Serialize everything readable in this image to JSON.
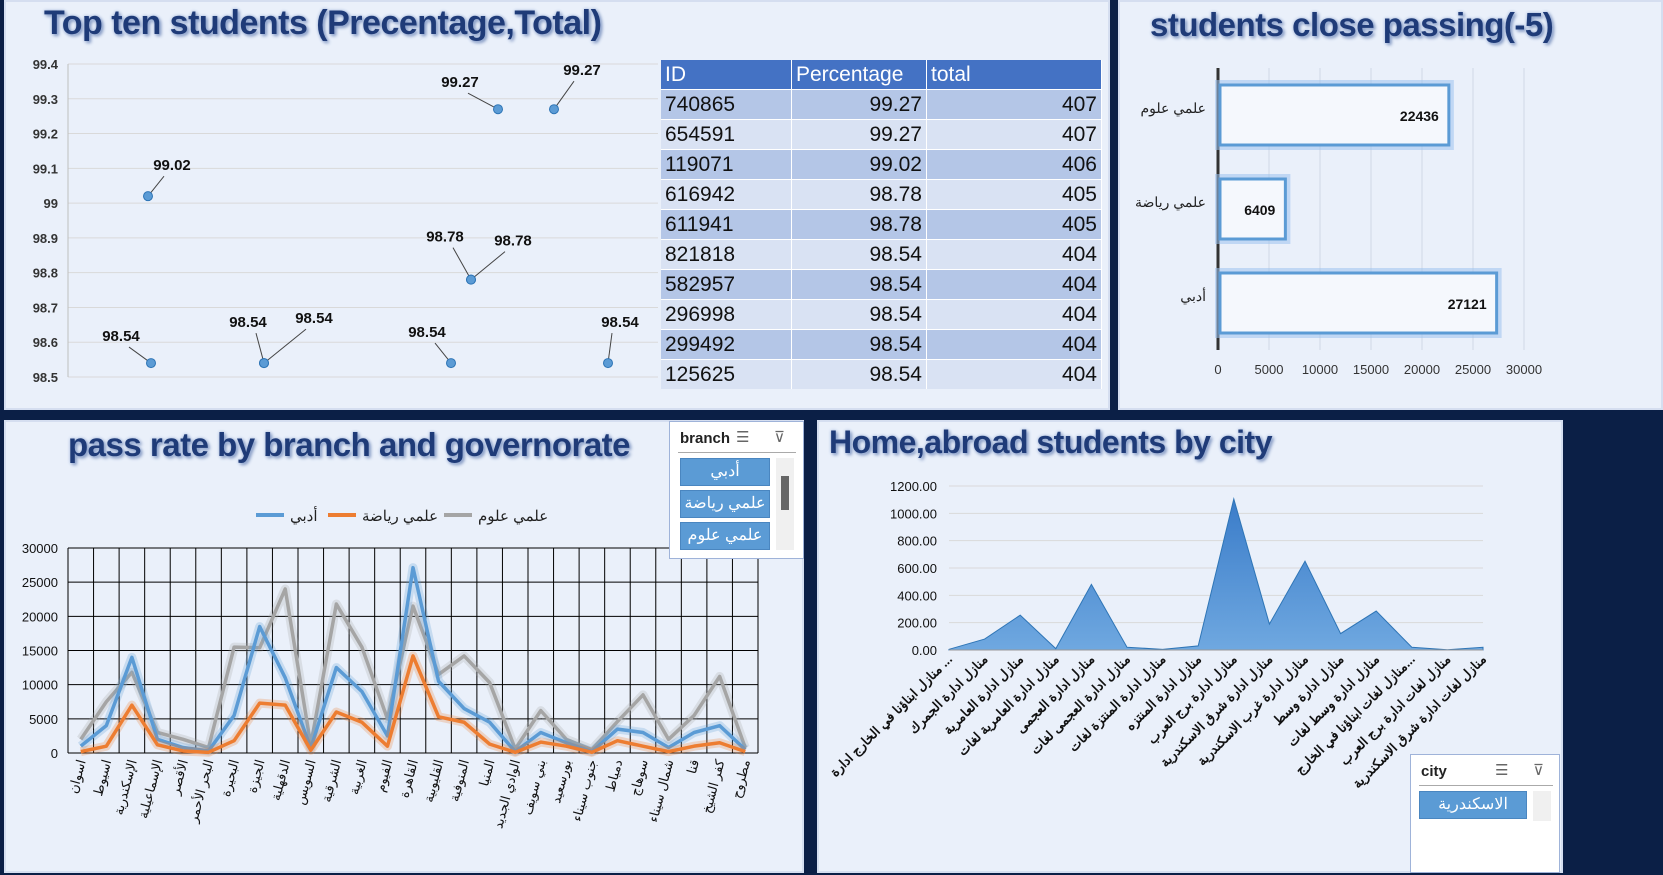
{
  "panels": {
    "top_ten_title": "Top ten students (Precentage,Total)",
    "close_pass_title": "students close passing(-5)",
    "pass_rate_title": "pass rate by branch and governorate",
    "home_abroad_title": "Home,abroad students by city"
  },
  "table": {
    "headers": [
      "ID",
      "Percentage",
      "total"
    ],
    "rows": [
      [
        "740865",
        "99.27",
        "407"
      ],
      [
        "654591",
        "99.27",
        "407"
      ],
      [
        "119071",
        "99.02",
        "406"
      ],
      [
        "616942",
        "98.78",
        "405"
      ],
      [
        "611941",
        "98.78",
        "405"
      ],
      [
        "821818",
        "98.54",
        "404"
      ],
      [
        "582957",
        "98.54",
        "404"
      ],
      [
        "296998",
        "98.54",
        "404"
      ],
      [
        "299492",
        "98.54",
        "404"
      ],
      [
        "125625",
        "98.54",
        "404"
      ]
    ]
  },
  "slicers": {
    "branch": {
      "title": "branch",
      "items": [
        "أدبي",
        "علمي رياضة",
        "علمي علوم"
      ]
    },
    "city": {
      "title": "city",
      "items": [
        "الاسكندرية"
      ]
    }
  },
  "chart_data": [
    {
      "type": "scatter",
      "ylim": [
        98.5,
        99.4
      ],
      "yticks": [
        "98.5",
        "98.6",
        "98.7",
        "98.8",
        "98.9",
        "99",
        "99.1",
        "99.2",
        "99.3",
        "99.4"
      ],
      "points": [
        {
          "x": 1,
          "y": 98.54,
          "label": "98.54"
        },
        {
          "x": 2,
          "y": 99.02,
          "label": "99.02"
        },
        {
          "x": 3,
          "y": 98.54,
          "label": "98.54"
        },
        {
          "x": 4,
          "y": 98.54,
          "label": "98.54"
        },
        {
          "x": 5,
          "y": 98.54,
          "label": "98.54"
        },
        {
          "x": 6,
          "y": 98.78,
          "label": "98.78"
        },
        {
          "x": 7,
          "y": 98.78,
          "label": "98.78"
        },
        {
          "x": 8,
          "y": 99.27,
          "label": "99.27"
        },
        {
          "x": 9,
          "y": 99.27,
          "label": "99.27"
        },
        {
          "x": 10,
          "y": 98.54,
          "label": "98.54"
        }
      ]
    },
    {
      "type": "bar",
      "orientation": "horizontal",
      "categories": [
        "علمي علوم",
        "علمي رياضة",
        "أدبي"
      ],
      "values": [
        22436,
        6409,
        27121
      ],
      "xlim": [
        0,
        30000
      ],
      "xticks": [
        "0",
        "5000",
        "10000",
        "15000",
        "20000",
        "25000",
        "30000"
      ]
    },
    {
      "type": "line",
      "categories": [
        "اسوان",
        "اسيوط",
        "الإسكندرية",
        "الإسماعيلية",
        "الأقصر",
        "البحر الأحمر",
        "البحيرة",
        "الجيزة",
        "الدقهلية",
        "السويس",
        "الشرقية",
        "الغربية",
        "الفيوم",
        "القاهرة",
        "القليوبية",
        "المنوفية",
        "المنيا",
        "الوادي الجديد",
        "بني سويف",
        "بورسعيد",
        "جنوب سيناء",
        "دمياط",
        "سوهاج",
        "شمال سيناء",
        "قنا",
        "كفر الشيخ",
        "مطروح"
      ],
      "series": [
        {
          "name": "أدبي",
          "color": "#5b9bd5",
          "values": [
            1000,
            4000,
            14000,
            2000,
            800,
            300,
            5500,
            18500,
            11000,
            700,
            12500,
            9000,
            2500,
            27121,
            10500,
            6500,
            4500,
            200,
            3000,
            1500,
            200,
            3500,
            3000,
            800,
            3000,
            4000,
            500
          ]
        },
        {
          "name": "علمي رياضة",
          "color": "#ed7d31",
          "values": [
            200,
            1000,
            7000,
            1200,
            300,
            100,
            1800,
            7300,
            7000,
            400,
            6000,
            4500,
            1000,
            14200,
            5300,
            4500,
            1300,
            100,
            1600,
            1000,
            100,
            1800,
            1000,
            200,
            1000,
            1500,
            200
          ]
        },
        {
          "name": "علمي علوم",
          "color": "#a5a5a5",
          "values": [
            2000,
            7500,
            11800,
            3000,
            2000,
            800,
            15500,
            15400,
            24000,
            1200,
            21800,
            15500,
            5000,
            21500,
            11500,
            14200,
            10300,
            600,
            6200,
            2000,
            500,
            4600,
            8500,
            2000,
            5500,
            11200,
            800
          ]
        }
      ],
      "ylim": [
        0,
        30000
      ],
      "yticks": [
        "0",
        "5000",
        "10000",
        "15000",
        "20000",
        "25000",
        "30000"
      ]
    },
    {
      "type": "area",
      "categories": [
        "منازل ابناؤنا في الخارج ادارة ...",
        "منازل ادارة الجمرك",
        "منازل ادارة العامرية",
        "منازل ادارة العامرية لغات",
        "منازل ادارة العجمى",
        "منازل ادارة العجمى لغات",
        "منازل ادارة المنتزة لغات",
        "منازل ادارة المنتزه",
        "منازل ادارة برج العرب",
        "منازل ادارة شرق الاسكندرية",
        "منازل ادارة غرب الاسكندرية",
        "منازل ادارة وسط",
        "منازل ادارة وسط لغات",
        "منازل لغات ابناؤنا في الخارج...",
        "منازل لغات ادارة برج العرب",
        "منازل لغات ادارة شرق الاسكندرية"
      ],
      "values": [
        5,
        80,
        255,
        10,
        480,
        20,
        5,
        30,
        1105,
        190,
        650,
        120,
        285,
        20,
        2,
        20
      ],
      "ylim": [
        0,
        1200
      ],
      "yticks": [
        "0.00",
        "200.00",
        "400.00",
        "600.00",
        "800.00",
        "1000.00",
        "1200.00"
      ]
    }
  ]
}
